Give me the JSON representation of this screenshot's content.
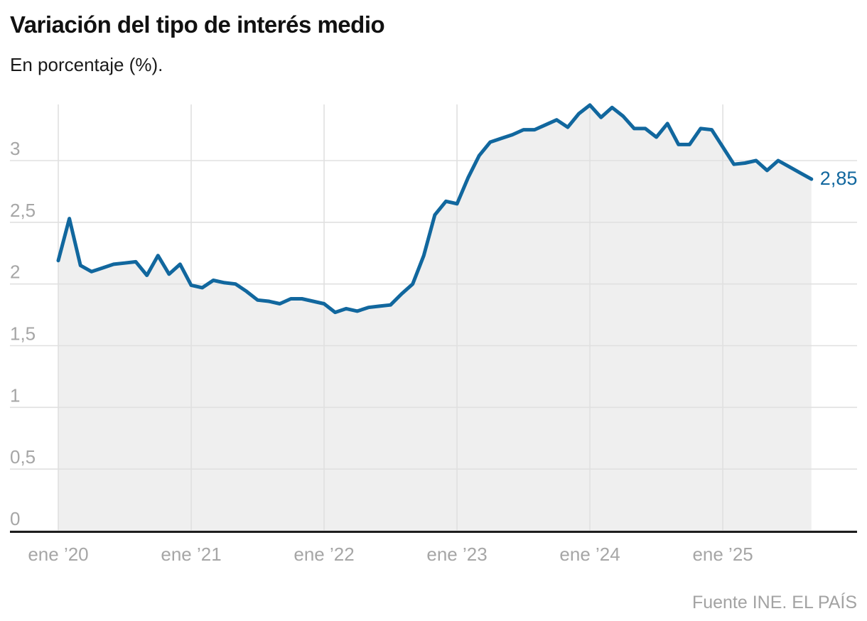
{
  "header": {
    "title": "Variación del tipo de interés medio",
    "subtitle": "En porcentaje (%)."
  },
  "footer": {
    "source": "Fuente INE. EL PAÍS"
  },
  "chart_data": {
    "type": "area",
    "title": "Variación del tipo de interés medio",
    "subtitle": "En porcentaje (%).",
    "source": "Fuente INE. EL PAÍS",
    "x_period": {
      "start": "ene 2020",
      "end": "sep 2025",
      "interval": "monthly"
    },
    "x_tick_labels": [
      "ene ’20",
      "ene ’21",
      "ene ’22",
      "ene ’23",
      "ene ’24",
      "ene ’25"
    ],
    "x_tick_month_indices": [
      0,
      12,
      24,
      36,
      48,
      60
    ],
    "y_ticks": [
      0,
      0.5,
      1,
      1.5,
      2,
      2.5,
      3
    ],
    "y_tick_labels": [
      "0",
      "0,5",
      "1",
      "1,5",
      "2",
      "2,5",
      "3"
    ],
    "ylim": [
      0,
      3.455
    ],
    "grid": "both",
    "legend": "none",
    "end_label": "2,85",
    "last_value": 2.85,
    "series": [
      {
        "name": "Tipo de interés medio (%)",
        "values": [
          2.19,
          2.53,
          2.15,
          2.1,
          2.13,
          2.16,
          2.17,
          2.18,
          2.07,
          2.23,
          2.08,
          2.16,
          1.99,
          1.97,
          2.03,
          2.01,
          2.0,
          1.94,
          1.87,
          1.86,
          1.84,
          1.88,
          1.88,
          1.86,
          1.84,
          1.77,
          1.8,
          1.78,
          1.81,
          1.82,
          1.83,
          1.92,
          2.0,
          2.23,
          2.56,
          2.67,
          2.65,
          2.86,
          3.04,
          3.15,
          3.18,
          3.21,
          3.25,
          3.25,
          3.29,
          3.33,
          3.27,
          3.38,
          3.45,
          3.35,
          3.43,
          3.36,
          3.26,
          3.26,
          3.19,
          3.3,
          3.13,
          3.13,
          3.26,
          3.25,
          3.11,
          2.97,
          2.98,
          3.0,
          2.92,
          3.0,
          2.95,
          2.9,
          2.85
        ]
      }
    ],
    "colors": {
      "line": "#11679e",
      "area_fill": "#efefef",
      "grid": "#e0e0e0",
      "axis": "#1d1d1d",
      "tick_text": "#a6a6a6",
      "end_label_text": "#11679e"
    }
  }
}
